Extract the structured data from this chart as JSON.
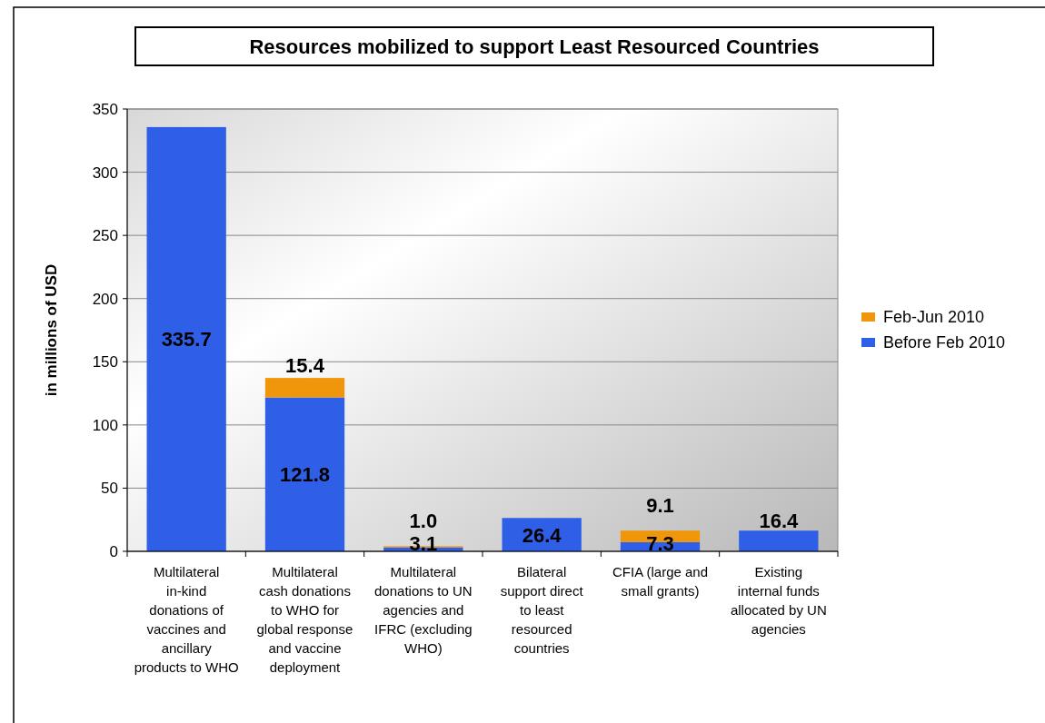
{
  "chart_data": {
    "type": "bar",
    "title": "Resources mobilized to support Least Resourced Countries",
    "ylabel": "in millions of USD",
    "categories": [
      "Multilateral in-kind donations of vaccines and ancillary products to WHO",
      "Multilateral cash donations to WHO for global response and vaccine deployment",
      "Multilateral donations to UN agencies and IFRC (excluding WHO)",
      "Bilateral support direct to least resourced countries",
      "CFIA (large and small grants)",
      "Existing internal funds allocated by UN agencies"
    ],
    "series": [
      {
        "name": "Before Feb 2010",
        "color": "#2f5fe6",
        "values": [
          335.7,
          121.8,
          3.1,
          26.4,
          7.3,
          16.4
        ],
        "value_labels": [
          "335.7",
          "121.8",
          "3.1",
          "26.4",
          "7.3",
          "16.4"
        ]
      },
      {
        "name": "Feb-Jun 2010",
        "color": "#f0960a",
        "values": [
          null,
          15.4,
          1.0,
          null,
          9.1,
          null
        ],
        "value_labels": [
          null,
          "15.4",
          "1.0",
          null,
          "9.1",
          null
        ]
      }
    ],
    "stacked": true,
    "ylim": [
      0,
      350
    ],
    "yticks": [
      0,
      50,
      100,
      150,
      200,
      250,
      300,
      350
    ],
    "grid": "y",
    "legend": "right"
  }
}
